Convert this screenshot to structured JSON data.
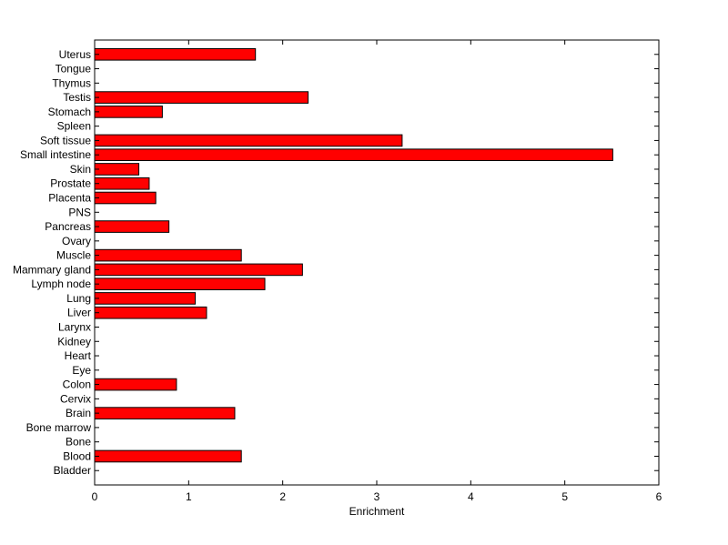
{
  "chart_data": {
    "type": "bar",
    "orientation": "horizontal",
    "categories": [
      "Uterus",
      "Tongue",
      "Thymus",
      "Testis",
      "Stomach",
      "Spleen",
      "Soft tissue",
      "Small intestine",
      "Skin",
      "Prostate",
      "Placenta",
      "PNS",
      "Pancreas",
      "Ovary",
      "Muscle",
      "Mammary gland",
      "Lymph node",
      "Lung",
      "Liver",
      "Larynx",
      "Kidney",
      "Heart",
      "Eye",
      "Colon",
      "Cervix",
      "Brain",
      "Bone marrow",
      "Bone",
      "Blood",
      "Bladder"
    ],
    "values": [
      1.71,
      0,
      0,
      2.27,
      0.72,
      0,
      3.27,
      5.51,
      0.47,
      0.58,
      0.65,
      0,
      0.79,
      0,
      1.56,
      2.21,
      1.81,
      1.07,
      1.19,
      0,
      0,
      0,
      0,
      0.87,
      0,
      1.49,
      0,
      0,
      1.56,
      0
    ],
    "xlabel": "Enrichment",
    "ylabel": "",
    "xlim": [
      0,
      6
    ],
    "xticks": [
      0,
      1,
      2,
      3,
      4,
      5,
      6
    ],
    "grid": false,
    "bar_color": "#ff0000",
    "edge_color": "#000000"
  }
}
